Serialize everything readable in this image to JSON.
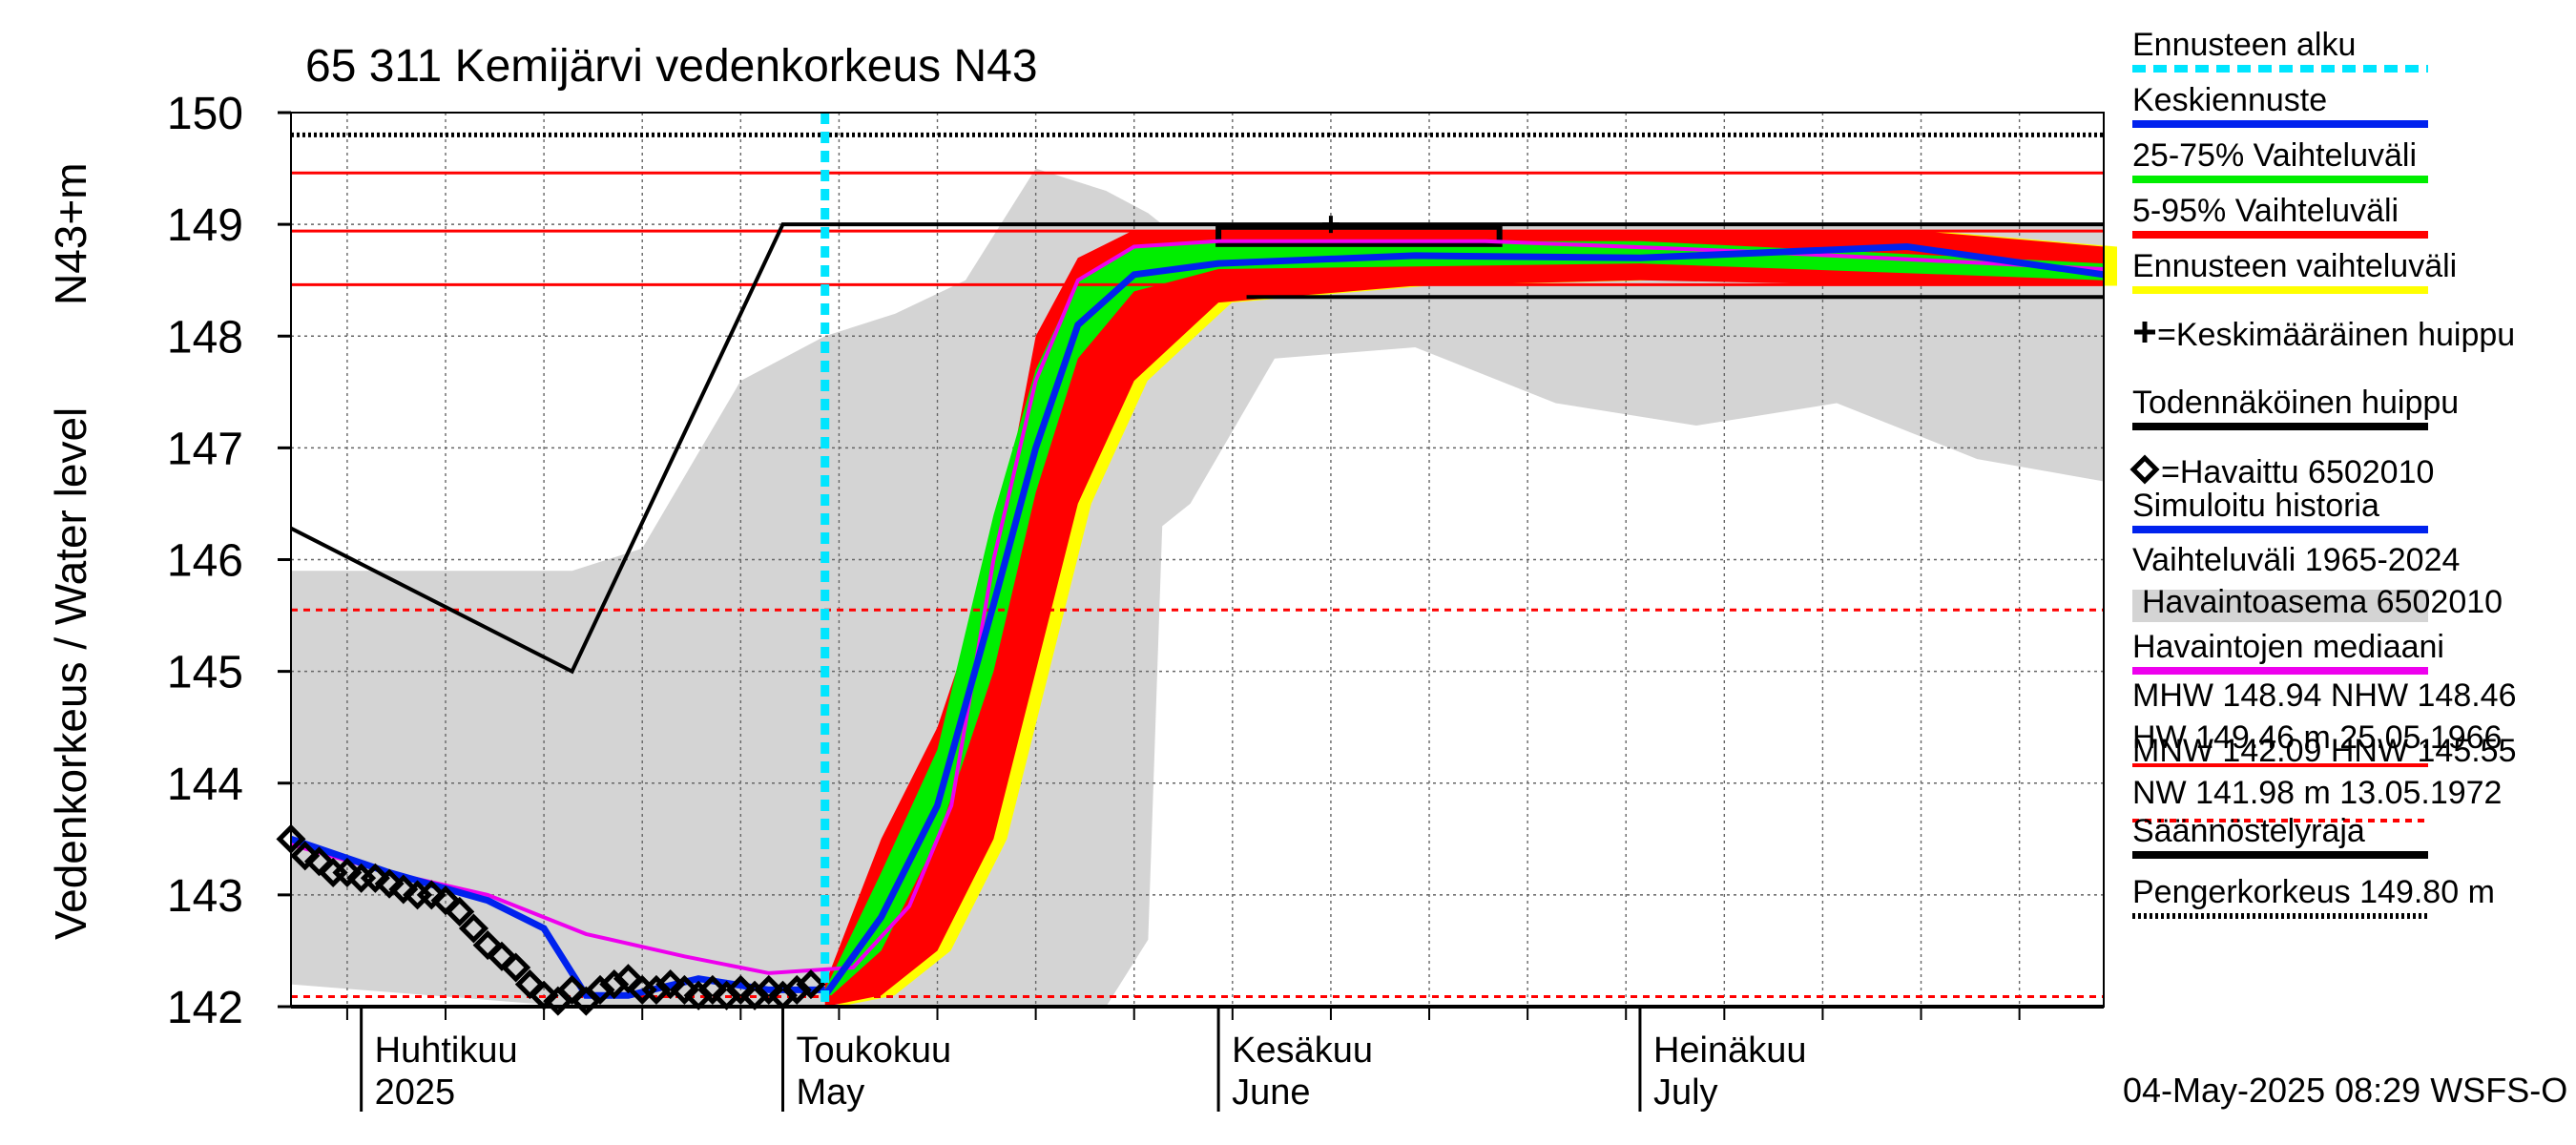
{
  "chart_data": {
    "type": "line",
    "title": "65 311 Kemijärvi vedenkorkeus N43",
    "ylabel": "Vedenkorkeus / Water level",
    "yunit": "N43+m",
    "ylim": [
      142,
      150
    ],
    "xlim": [
      "2025-03-27",
      "2025-08-03"
    ],
    "y_ticks": [
      142,
      143,
      144,
      145,
      146,
      147,
      148,
      149,
      150
    ],
    "month_labels": [
      {
        "date": "2025-04-01",
        "fi": "Huhtikuu",
        "en": "2025"
      },
      {
        "date": "2025-05-01",
        "fi": "Toukokuu",
        "en": "May"
      },
      {
        "date": "2025-06-01",
        "fi": "Kesäkuu",
        "en": "June"
      },
      {
        "date": "2025-07-01",
        "fi": "Heinäkuu",
        "en": "July"
      }
    ],
    "reference_lines": {
      "MHW": 148.94,
      "NHW": 148.46,
      "HW": 149.46,
      "MNW": 142.09,
      "HNW": 145.55,
      "NW": 141.98,
      "pengerkorkeus": 149.8
    },
    "forecast_start": "2025-05-04",
    "regulation_limit": [
      {
        "date": "2025-03-27",
        "y": 146.28
      },
      {
        "date": "2025-04-16",
        "y": 145.0
      },
      {
        "date": "2025-05-01",
        "y": 149.0
      },
      {
        "date": "2025-08-03",
        "y": 149.0
      }
    ],
    "regulation_lower": {
      "from": "2025-06-03",
      "to": "2025-08-03",
      "y": 148.35
    },
    "probable_peak": {
      "from": "2025-06-01",
      "to": "2025-06-21",
      "y": 148.9
    },
    "mean_peak": {
      "date": "2025-06-09",
      "y": 149.0
    },
    "historical_range": [
      {
        "date": "2025-03-27",
        "low": 142.2,
        "high": 145.9
      },
      {
        "date": "2025-04-16",
        "low": 142.0,
        "high": 145.9
      },
      {
        "date": "2025-04-21",
        "low": 142.0,
        "high": 146.1
      },
      {
        "date": "2025-04-28",
        "low": 142.0,
        "high": 147.6
      },
      {
        "date": "2025-05-04",
        "low": 142.0,
        "high": 148.0
      },
      {
        "date": "2025-05-09",
        "low": 142.0,
        "high": 148.2
      },
      {
        "date": "2025-05-14",
        "low": 142.0,
        "high": 148.5
      },
      {
        "date": "2025-05-19",
        "low": 142.0,
        "high": 149.5
      },
      {
        "date": "2025-05-24",
        "low": 142.0,
        "high": 149.3
      },
      {
        "date": "2025-05-27",
        "low": 142.6,
        "high": 149.1
      },
      {
        "date": "2025-05-28",
        "low": 146.3,
        "high": 149.0
      },
      {
        "date": "2025-05-30",
        "low": 146.5,
        "high": 149.0
      },
      {
        "date": "2025-06-05",
        "low": 147.8,
        "high": 149.0
      },
      {
        "date": "2025-06-15",
        "low": 147.9,
        "high": 149.0
      },
      {
        "date": "2025-06-25",
        "low": 147.4,
        "high": 149.0
      },
      {
        "date": "2025-07-05",
        "low": 147.2,
        "high": 149.0
      },
      {
        "date": "2025-07-15",
        "low": 147.4,
        "high": 149.0
      },
      {
        "date": "2025-07-25",
        "low": 146.9,
        "high": 149.0
      },
      {
        "date": "2025-08-03",
        "low": 146.7,
        "high": 149.0
      }
    ],
    "forecast_band_5_95": [
      {
        "date": "2025-05-04",
        "low": 142.0,
        "high": 142.2
      },
      {
        "date": "2025-05-08",
        "low": 142.1,
        "high": 143.5
      },
      {
        "date": "2025-05-12",
        "low": 142.5,
        "high": 144.5
      },
      {
        "date": "2025-05-16",
        "low": 143.5,
        "high": 146.0
      },
      {
        "date": "2025-05-19",
        "low": 145.0,
        "high": 148.0
      },
      {
        "date": "2025-05-22",
        "low": 146.5,
        "high": 148.7
      },
      {
        "date": "2025-05-26",
        "low": 147.6,
        "high": 148.95
      },
      {
        "date": "2025-06-01",
        "low": 148.3,
        "high": 148.95
      },
      {
        "date": "2025-06-15",
        "low": 148.45,
        "high": 148.95
      },
      {
        "date": "2025-07-01",
        "low": 148.5,
        "high": 148.95
      },
      {
        "date": "2025-07-20",
        "low": 148.45,
        "high": 148.95
      },
      {
        "date": "2025-08-03",
        "low": 148.45,
        "high": 148.8
      }
    ],
    "forecast_band_25_75": [
      {
        "date": "2025-05-04",
        "low": 142.05,
        "high": 142.15
      },
      {
        "date": "2025-05-08",
        "low": 142.5,
        "high": 143.2
      },
      {
        "date": "2025-05-12",
        "low": 143.5,
        "high": 144.3
      },
      {
        "date": "2025-05-16",
        "low": 145.0,
        "high": 146.4
      },
      {
        "date": "2025-05-19",
        "low": 146.6,
        "high": 147.7
      },
      {
        "date": "2025-05-22",
        "low": 147.8,
        "high": 148.5
      },
      {
        "date": "2025-05-26",
        "low": 148.4,
        "high": 148.8
      },
      {
        "date": "2025-06-01",
        "low": 148.6,
        "high": 148.85
      },
      {
        "date": "2025-07-01",
        "low": 148.65,
        "high": 148.85
      },
      {
        "date": "2025-08-03",
        "low": 148.5,
        "high": 148.65
      }
    ],
    "forecast_mean": [
      {
        "date": "2025-05-04",
        "y": 142.1
      },
      {
        "date": "2025-05-08",
        "y": 142.8
      },
      {
        "date": "2025-05-12",
        "y": 143.8
      },
      {
        "date": "2025-05-16",
        "y": 145.6
      },
      {
        "date": "2025-05-19",
        "y": 147.0
      },
      {
        "date": "2025-05-22",
        "y": 148.1
      },
      {
        "date": "2025-05-26",
        "y": 148.55
      },
      {
        "date": "2025-06-01",
        "y": 148.65
      },
      {
        "date": "2025-06-15",
        "y": 148.72
      },
      {
        "date": "2025-07-01",
        "y": 148.7
      },
      {
        "date": "2025-07-20",
        "y": 148.8
      },
      {
        "date": "2025-08-03",
        "y": 148.55
      }
    ],
    "simulated_history": [
      {
        "date": "2025-03-27",
        "y": 143.5
      },
      {
        "date": "2025-04-03",
        "y": 143.2
      },
      {
        "date": "2025-04-10",
        "y": 142.95
      },
      {
        "date": "2025-04-14",
        "y": 142.7
      },
      {
        "date": "2025-04-17",
        "y": 142.1
      },
      {
        "date": "2025-04-20",
        "y": 142.1
      },
      {
        "date": "2025-04-25",
        "y": 142.25
      },
      {
        "date": "2025-04-30",
        "y": 142.15
      },
      {
        "date": "2025-05-04",
        "y": 142.15
      }
    ],
    "observation_median": [
      {
        "date": "2025-03-27",
        "y": 143.45
      },
      {
        "date": "2025-04-03",
        "y": 143.2
      },
      {
        "date": "2025-04-10",
        "y": 143.0
      },
      {
        "date": "2025-04-17",
        "y": 142.65
      },
      {
        "date": "2025-04-24",
        "y": 142.45
      },
      {
        "date": "2025-04-30",
        "y": 142.3
      },
      {
        "date": "2025-05-06",
        "y": 142.35
      },
      {
        "date": "2025-05-10",
        "y": 142.9
      },
      {
        "date": "2025-05-13",
        "y": 143.8
      },
      {
        "date": "2025-05-16",
        "y": 146.0
      },
      {
        "date": "2025-05-19",
        "y": 147.6
      },
      {
        "date": "2025-05-22",
        "y": 148.5
      },
      {
        "date": "2025-05-26",
        "y": 148.8
      },
      {
        "date": "2025-06-01",
        "y": 148.85
      },
      {
        "date": "2025-06-20",
        "y": 148.85
      },
      {
        "date": "2025-07-10",
        "y": 148.75
      },
      {
        "date": "2025-08-03",
        "y": 148.6
      }
    ],
    "observed": [
      {
        "date": "2025-03-27",
        "y": 143.5
      },
      {
        "date": "2025-03-28",
        "y": 143.35
      },
      {
        "date": "2025-03-29",
        "y": 143.3
      },
      {
        "date": "2025-03-30",
        "y": 143.2
      },
      {
        "date": "2025-03-31",
        "y": 143.2
      },
      {
        "date": "2025-04-01",
        "y": 143.15
      },
      {
        "date": "2025-04-02",
        "y": 143.15
      },
      {
        "date": "2025-04-03",
        "y": 143.1
      },
      {
        "date": "2025-04-04",
        "y": 143.05
      },
      {
        "date": "2025-04-05",
        "y": 143.0
      },
      {
        "date": "2025-04-06",
        "y": 143.0
      },
      {
        "date": "2025-04-07",
        "y": 142.95
      },
      {
        "date": "2025-04-08",
        "y": 142.85
      },
      {
        "date": "2025-04-09",
        "y": 142.7
      },
      {
        "date": "2025-04-10",
        "y": 142.55
      },
      {
        "date": "2025-04-11",
        "y": 142.45
      },
      {
        "date": "2025-04-12",
        "y": 142.35
      },
      {
        "date": "2025-04-13",
        "y": 142.2
      },
      {
        "date": "2025-04-14",
        "y": 142.1
      },
      {
        "date": "2025-04-15",
        "y": 142.05
      },
      {
        "date": "2025-04-16",
        "y": 142.15
      },
      {
        "date": "2025-04-17",
        "y": 142.05
      },
      {
        "date": "2025-04-18",
        "y": 142.15
      },
      {
        "date": "2025-04-19",
        "y": 142.2
      },
      {
        "date": "2025-04-20",
        "y": 142.25
      },
      {
        "date": "2025-04-21",
        "y": 142.15
      },
      {
        "date": "2025-04-22",
        "y": 142.15
      },
      {
        "date": "2025-04-23",
        "y": 142.2
      },
      {
        "date": "2025-04-24",
        "y": 142.15
      },
      {
        "date": "2025-04-25",
        "y": 142.1
      },
      {
        "date": "2025-04-26",
        "y": 142.15
      },
      {
        "date": "2025-04-27",
        "y": 142.1
      },
      {
        "date": "2025-04-28",
        "y": 142.15
      },
      {
        "date": "2025-04-29",
        "y": 142.1
      },
      {
        "date": "2025-04-30",
        "y": 142.15
      },
      {
        "date": "2025-05-01",
        "y": 142.1
      },
      {
        "date": "2025-05-02",
        "y": 142.15
      },
      {
        "date": "2025-05-03",
        "y": 142.2
      }
    ],
    "legend": [
      {
        "key": "ennusteen_alku",
        "label": "Ennusteen alku",
        "color": "#00e5ff",
        "style": "dashed"
      },
      {
        "key": "keskiennuste",
        "label": "Keskiennuste",
        "color": "#0022ee",
        "style": "solid"
      },
      {
        "key": "band_25_75",
        "label": "25-75% Vaihteluväli",
        "color": "#00ee00",
        "style": "solid"
      },
      {
        "key": "band_5_95",
        "label": "5-95% Vaihteluväli",
        "color": "#ff0000",
        "style": "solid"
      },
      {
        "key": "ennusteen_vaihteluvali",
        "label": "Ennusteen vaihteluväli",
        "color": "#ffff00",
        "style": "solid"
      },
      {
        "key": "keskimaarainen_huippu",
        "label": "=Keskimääräinen huippu",
        "symbol": "+",
        "color": "#000000",
        "style": "none"
      },
      {
        "key": "todennakoinen_huippu",
        "label": "Todennäköinen huippu",
        "color": "#000000",
        "style": "solid"
      },
      {
        "key": "havaittu",
        "label": "=Havaittu 6502010",
        "symbol": "diamond",
        "color": "#000000",
        "style": "none"
      },
      {
        "key": "simuloitu",
        "label": "Simuloitu historia",
        "color": "#0022ee",
        "style": "solid"
      },
      {
        "key": "vaihteluvali",
        "label": "Vaihteluväli 1965-2024",
        "label2": "Havaintoasema 6502010",
        "color": "#d4d4d4",
        "style": "wide"
      },
      {
        "key": "mediaani",
        "label": "Havaintojen mediaani",
        "color": "#ee00ee",
        "style": "solid"
      },
      {
        "key": "mhw",
        "label": "MHW 148.94 NHW 148.46",
        "label2": "HW 149.46 m 25.05.1966",
        "color": "#ff0000",
        "style": "solid"
      },
      {
        "key": "mnw",
        "label": "MNW 142.09 HNW 145.55",
        "label2": "NW 141.98 m 13.05.1972",
        "color": "#ff0000",
        "style": "dashed"
      },
      {
        "key": "saannostelyraja",
        "label": "Säännöstelyraja",
        "color": "#000000",
        "style": "solid"
      },
      {
        "key": "pengerkorkeus",
        "label": "Pengerkorkeus 149.80 m",
        "color": "#000000",
        "style": "dotted"
      }
    ],
    "footer": "04-May-2025 08:29 WSFS-O"
  },
  "colors": {
    "range": "#d4d4d4",
    "yellow": "#ffff00",
    "red": "#ff0000",
    "green": "#00ee00",
    "blue": "#0022ee",
    "magenta": "#ee00ee",
    "cyan": "#00e5ff",
    "black": "#000000"
  }
}
